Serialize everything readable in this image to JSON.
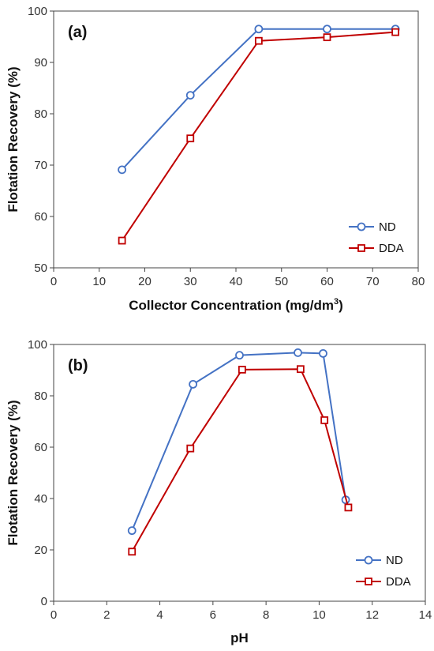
{
  "chart_data": [
    {
      "type": "line",
      "panel_label": "(a)",
      "xlabel": "Collector Concentration (mg/dm",
      "xlabel_sup": "3",
      "xlabel_end": ")",
      "ylabel": "Flotation Recovery (%)",
      "xlim": [
        0,
        80
      ],
      "ylim": [
        50,
        100
      ],
      "x_ticks": [
        0,
        10,
        20,
        30,
        40,
        50,
        60,
        70,
        80
      ],
      "y_ticks": [
        50,
        60,
        70,
        80,
        90,
        100
      ],
      "legend_position": "bottom-right",
      "series": [
        {
          "name": "ND",
          "color": "#4472C4",
          "marker": "circle",
          "x": [
            15,
            30,
            45,
            60,
            75
          ],
          "y": [
            69.1,
            83.6,
            96.5,
            96.5,
            96.5
          ]
        },
        {
          "name": "DDA",
          "color": "#C00000",
          "marker": "square",
          "x": [
            15,
            30,
            45,
            60,
            75
          ],
          "y": [
            55.3,
            75.2,
            94.2,
            94.9,
            95.9
          ]
        }
      ]
    },
    {
      "type": "line",
      "panel_label": "(b)",
      "xlabel": "pH",
      "xlabel_sup": "",
      "xlabel_end": "",
      "ylabel": "Flotation Recovery (%)",
      "xlim": [
        0,
        14
      ],
      "ylim": [
        0,
        100
      ],
      "x_ticks": [
        0,
        2,
        4,
        6,
        8,
        10,
        12,
        14
      ],
      "y_ticks": [
        0,
        20,
        40,
        60,
        80,
        100
      ],
      "legend_position": "bottom-right",
      "series": [
        {
          "name": "ND",
          "color": "#4472C4",
          "marker": "circle",
          "x": [
            2.95,
            5.25,
            7.0,
            9.2,
            10.15,
            11.0
          ],
          "y": [
            27.5,
            84.5,
            95.8,
            96.8,
            96.5,
            39.5
          ]
        },
        {
          "name": "DDA",
          "color": "#C00000",
          "marker": "square",
          "x": [
            2.95,
            5.15,
            7.1,
            9.3,
            10.2,
            11.1
          ],
          "y": [
            19.3,
            59.5,
            90.2,
            90.4,
            70.5,
            36.5
          ]
        }
      ]
    }
  ]
}
